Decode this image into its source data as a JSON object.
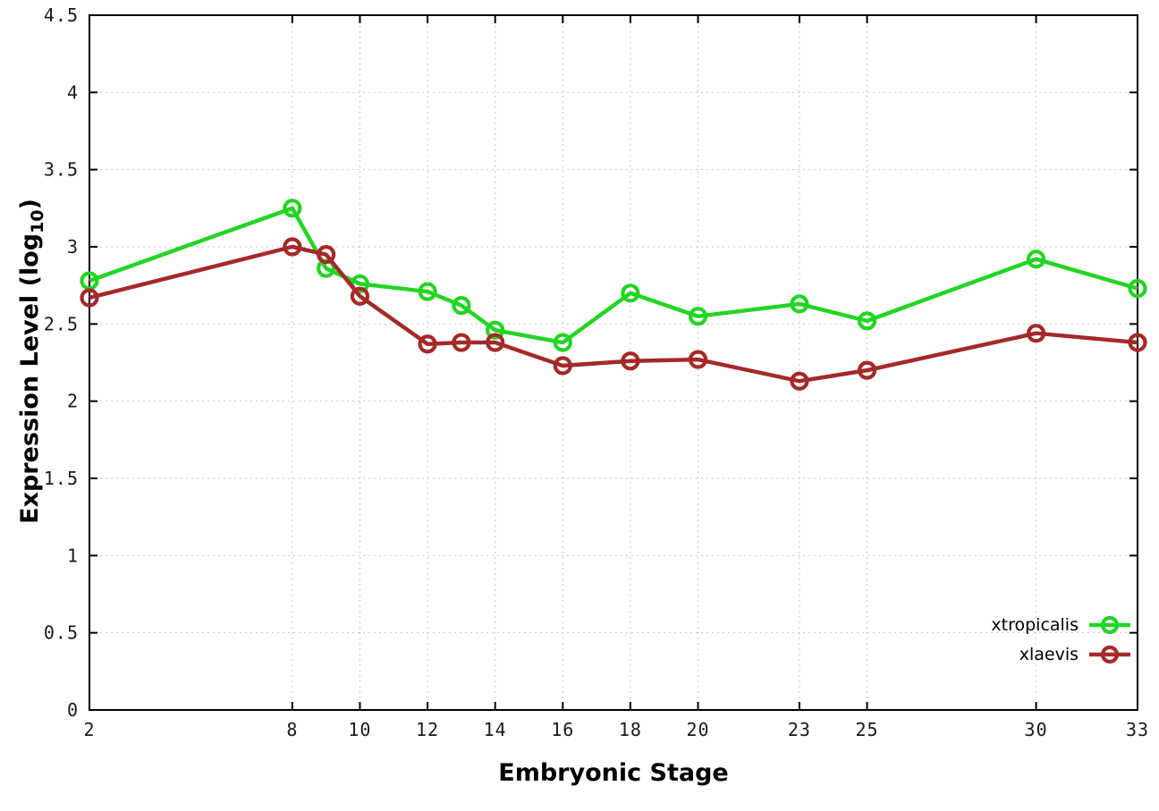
{
  "chart_data": {
    "type": "line",
    "title": "",
    "xlabel": "Embryonic Stage",
    "ylabel": "Expression Level (log10)",
    "ylabel_parts": {
      "pre": "Expression Level (log",
      "sub": "10",
      "post": ")"
    },
    "x": [
      2,
      8,
      9,
      10,
      12,
      13,
      14,
      16,
      18,
      20,
      23,
      25,
      30,
      33
    ],
    "series": [
      {
        "name": "xtropicalis",
        "color": "#23d523",
        "values": [
          2.78,
          3.25,
          2.86,
          2.76,
          2.71,
          2.62,
          2.46,
          2.38,
          2.7,
          2.55,
          2.63,
          2.52,
          2.92,
          2.73
        ]
      },
      {
        "name": "xlaevis",
        "color": "#a42929",
        "values": [
          2.67,
          3.0,
          2.95,
          2.68,
          2.37,
          2.38,
          2.38,
          2.23,
          2.26,
          2.27,
          2.13,
          2.2,
          2.44,
          2.38
        ]
      }
    ],
    "xlim": [
      2,
      33
    ],
    "ylim": [
      0,
      4.5
    ],
    "xticks": {
      "values": [
        2,
        8,
        10,
        12,
        14,
        16,
        18,
        20,
        23,
        25,
        30,
        33
      ],
      "labels": [
        "2",
        "8",
        "10",
        "12",
        "14",
        "16",
        "18",
        "20",
        "23",
        "25",
        "30",
        "33"
      ]
    },
    "yticks": {
      "values": [
        0,
        0.5,
        1,
        1.5,
        2,
        2.5,
        3,
        3.5,
        4,
        4.5
      ],
      "labels": [
        "0",
        "0.5",
        "1",
        "1.5",
        "2",
        "2.5",
        "3",
        "3.5",
        "4",
        "4.5"
      ]
    },
    "grid": true,
    "legend_position": "bottom-right",
    "marker": "open-circle"
  },
  "colors": {
    "background": "#ffffff",
    "axis": "#000000",
    "grid": "#c6c6c6",
    "tick_label": "#1a1a1a",
    "xtropicalis": "#23d523",
    "xlaevis": "#a42929"
  }
}
